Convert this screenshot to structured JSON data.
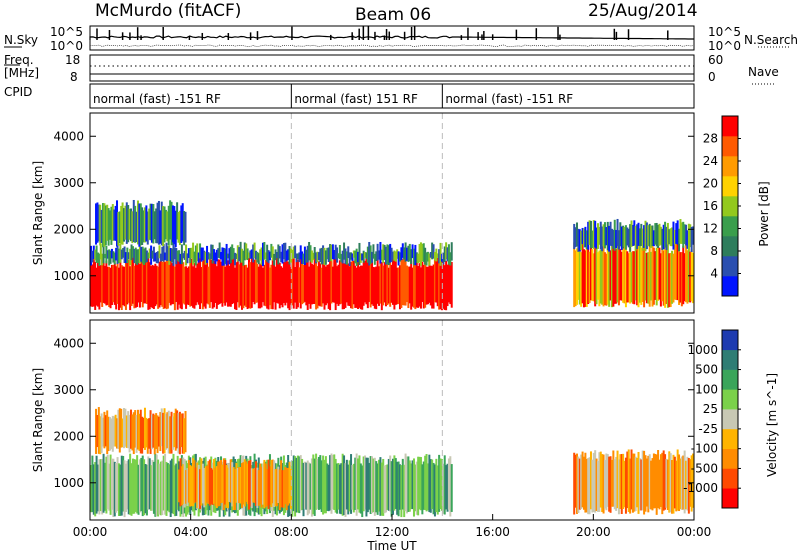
{
  "header": {
    "station": "McMurdo (fitACF)",
    "beam": "Beam 06",
    "date": "25/Aug/2014"
  },
  "top_panels": {
    "nsky_label": "N.Sky",
    "nsearch_label": "N.Search",
    "nsky_ticks": [
      "10^5",
      "10^0"
    ],
    "nsky_right_ticks": [
      "10^5",
      "10^0"
    ],
    "freq_label_1": "Freq.",
    "freq_label_2": "[MHz]",
    "freq_ticks": [
      "18",
      "8"
    ],
    "nave_label": "Nave",
    "nave_ticks": [
      "60",
      "0"
    ],
    "cpid_label": "CPID",
    "cpid_segments": [
      {
        "label": "normal (fast) -151 RF",
        "start_hour": 0,
        "end_hour": 8
      },
      {
        "label": "normal (fast) 151 RF",
        "start_hour": 8,
        "end_hour": 14
      },
      {
        "label": "normal (fast) -151 RF",
        "start_hour": 14,
        "end_hour": 24
      }
    ]
  },
  "axes": {
    "xlabel": "Time UT",
    "x_ticks": [
      "00:00",
      "04:00",
      "08:00",
      "12:00",
      "16:00",
      "20:00",
      "00:00"
    ],
    "x_tick_hours": [
      0,
      4,
      8,
      12,
      16,
      20,
      24
    ],
    "ylabel": "Slant Range [km]",
    "y_ticks": [
      "4000",
      "3000",
      "2000",
      "1000"
    ],
    "y_tick_values": [
      4000,
      3000,
      2000,
      1000
    ],
    "ylim": [
      200,
      4500
    ],
    "xlim": [
      0,
      24
    ]
  },
  "colorbars": {
    "power": {
      "label": "Power [dB]",
      "tick_labels": [
        "28",
        "24",
        "20",
        "16",
        "12",
        "8",
        "4"
      ],
      "colors": [
        "#ff0000",
        "#ff5a00",
        "#ff9b00",
        "#ffd200",
        "#93c91e",
        "#3a9e4c",
        "#2e7d5c",
        "#2a4fb0",
        "#0014ff"
      ]
    },
    "velocity": {
      "label": "Velocity [m s^-1]",
      "tick_labels": [
        "1000",
        "500",
        "100",
        "25",
        "-25",
        "-100",
        "-500",
        "-1000"
      ],
      "colors": [
        "#1e3bb0",
        "#2f7d74",
        "#3aa55a",
        "#7bd14a",
        "#c8c8b4",
        "#ffb400",
        "#ff8c00",
        "#ff4a00",
        "#ff0000"
      ]
    }
  },
  "chart_data": {
    "type": "heatmap",
    "title": "McMurdo (fitACF)  Beam 06  25/Aug/2014",
    "xlabel": "Time UT",
    "ylabel": "Slant Range [km]",
    "ylim": [
      200,
      4500
    ],
    "xlim_hours": [
      0,
      24
    ],
    "panels": [
      {
        "name": "Power [dB]",
        "regions": [
          {
            "t_start": 0.0,
            "t_end": 14.4,
            "range_low": 350,
            "range_high": 1300,
            "value": 26
          },
          {
            "t_start": 0.0,
            "t_end": 14.4,
            "range_low": 1300,
            "range_high": 1600,
            "value": 8
          },
          {
            "t_start": 0.2,
            "t_end": 3.8,
            "range_low": 1700,
            "range_high": 2500,
            "value": 8
          },
          {
            "t_start": 19.2,
            "t_end": 24.0,
            "range_low": 400,
            "range_high": 1600,
            "value": 18
          },
          {
            "t_start": 19.2,
            "t_end": 24.0,
            "range_low": 1600,
            "range_high": 2100,
            "value": 8
          }
        ]
      },
      {
        "name": "Velocity [m s^-1]",
        "regions": [
          {
            "t_start": 0.0,
            "t_end": 14.4,
            "range_low": 350,
            "range_high": 1500,
            "value": 25
          },
          {
            "t_start": 3.5,
            "t_end": 8.0,
            "range_low": 500,
            "range_high": 1400,
            "value": -100
          },
          {
            "t_start": 0.2,
            "t_end": 3.8,
            "range_low": 1700,
            "range_high": 2500,
            "value": -100
          },
          {
            "t_start": 19.2,
            "t_end": 24.0,
            "range_low": 400,
            "range_high": 1600,
            "value": -100
          }
        ]
      }
    ]
  }
}
